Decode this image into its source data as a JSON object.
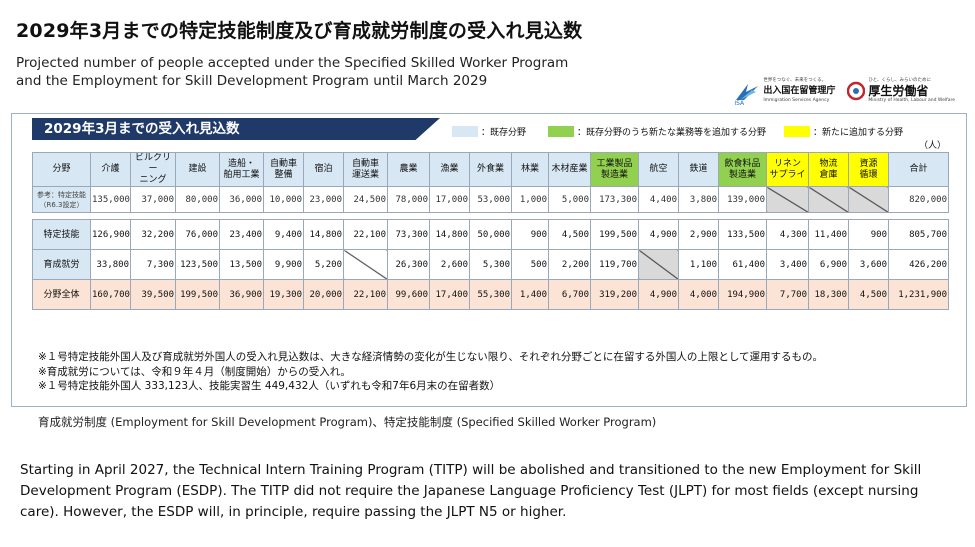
{
  "title": "2029年3月までの特定技能制度及び育成就労制度の受入れ見込数",
  "subtitle_line1": "Projected number of people accepted under the Specified Skilled Worker Program",
  "subtitle_line2": "and the Employment for Skill Development Program until March 2029",
  "logos": {
    "isa": {
      "name": "出入国在留管理庁",
      "sub": "Immigration Services Agency",
      "mark": "ISA",
      "slogan": "世界をつなぐ、未来をつくる。"
    },
    "mhlw": {
      "name": "厚生労働省",
      "sub": "Ministry of Health, Labour and Welfare",
      "slogan": "ひと、くらし、みらいのために"
    }
  },
  "card": {
    "title": "2029年3月までの受入れ見込数",
    "legend": {
      "existing": "：既存分野",
      "existing_added": "：既存分野のうち新たな業務等を追加する分野",
      "new": "：新たに追加する分野"
    },
    "unit": "（人）",
    "colors": {
      "existing": "#d7e7f4",
      "existing_added": "#92d050",
      "new": "#ffff00",
      "total_row": "#fbe4d5",
      "title_bg": "#1f3a68"
    }
  },
  "table": {
    "row_header": "分野",
    "columns": [
      {
        "label": "介護",
        "type": "existing"
      },
      {
        "label": "ビルクリー\nニング",
        "type": "existing"
      },
      {
        "label": "建設",
        "type": "existing"
      },
      {
        "label": "造船・\n舶用工業",
        "type": "existing"
      },
      {
        "label": "自動車\n整備",
        "type": "existing"
      },
      {
        "label": "宿泊",
        "type": "existing"
      },
      {
        "label": "自動車\n運送業",
        "type": "existing"
      },
      {
        "label": "農業",
        "type": "existing"
      },
      {
        "label": "漁業",
        "type": "existing"
      },
      {
        "label": "外食業",
        "type": "existing"
      },
      {
        "label": "林業",
        "type": "existing"
      },
      {
        "label": "木材産業",
        "type": "existing"
      },
      {
        "label": "工業製品\n製造業",
        "type": "existing_added"
      },
      {
        "label": "航空",
        "type": "existing"
      },
      {
        "label": "鉄道",
        "type": "existing"
      },
      {
        "label": "飲食料品\n製造業",
        "type": "existing_added"
      },
      {
        "label": "リネン\nサプライ",
        "type": "new"
      },
      {
        "label": "物流\n倉庫",
        "type": "new"
      },
      {
        "label": "資源\n循環",
        "type": "new"
      },
      {
        "label": "合計",
        "type": "existing"
      }
    ],
    "rows": [
      {
        "label": "参考：特定技能\n（R6.3設定）",
        "kind": "ref",
        "values": [
          "135,000",
          "37,000",
          "80,000",
          "36,000",
          "10,000",
          "23,000",
          "24,500",
          "78,000",
          "17,000",
          "53,000",
          "1,000",
          "5,000",
          "173,300",
          "4,400",
          "3,800",
          "139,000",
          "",
          "",
          "",
          "820,000"
        ]
      },
      {
        "label": "特定技能",
        "kind": "normal",
        "values": [
          "126,900",
          "32,200",
          "76,000",
          "23,400",
          "9,400",
          "14,800",
          "22,100",
          "73,300",
          "14,800",
          "50,000",
          "900",
          "4,500",
          "199,500",
          "4,900",
          "2,900",
          "133,500",
          "4,300",
          "11,400",
          "900",
          "805,700"
        ]
      },
      {
        "label": "育成就労",
        "kind": "normal",
        "values": [
          "33,800",
          "7,300",
          "123,500",
          "13,500",
          "9,900",
          "5,200",
          "",
          "26,300",
          "2,600",
          "5,300",
          "500",
          "2,200",
          "119,700",
          "",
          "1,100",
          "61,400",
          "3,400",
          "6,900",
          "3,600",
          "426,200"
        ]
      },
      {
        "label": "分野全体",
        "kind": "total",
        "values": [
          "160,700",
          "39,500",
          "199,500",
          "36,900",
          "19,300",
          "20,000",
          "22,100",
          "99,600",
          "17,400",
          "55,300",
          "1,400",
          "6,700",
          "319,200",
          "4,900",
          "4,000",
          "194,900",
          "7,700",
          "18,300",
          "4,500",
          "1,231,900"
        ]
      }
    ],
    "notes": [
      "※１号特定技能外国人及び育成就労外国人の受入れ見込数は、大きな経済情勢の変化が生じない限り、それぞれ分野ごとに在留する外国人の上限として運用するもの。",
      "※育成就労については、令和９年４月（制度開始）からの受入れ。",
      "※１号特定技能外国人 333,123人、技能実習生 449,432人（いずれも令和7年6月末の在留者数）"
    ]
  },
  "caption": "育成就労制度 (Employment for Skill Development Program)、特定技能制度 (Specified Skilled Worker Program)",
  "paragraph": "Starting in April 2027, the Technical Intern Training Program (TITP) will be abolished and transitioned to the new Employment for Skill Development Program (ESDP). The TITP did not require the Japanese Language Proficiency Test (JLPT) for most fields (except nursing care). However, the ESDP will, in principle, require passing the JLPT N5 or higher."
}
